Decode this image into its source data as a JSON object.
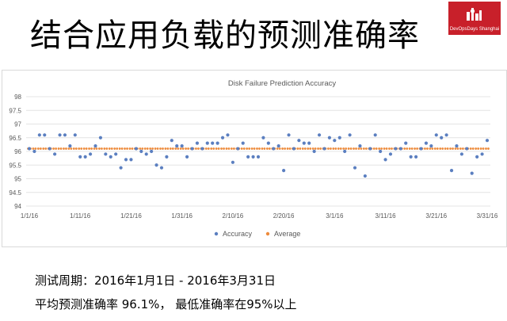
{
  "slide": {
    "title": "结合应用负载的预测准确率",
    "logo_text": "DevOpsDays Shanghai",
    "caption_line1": "测试周期：2016年1月1日 - 2016年3月31日",
    "caption_line2": "平均预测准确率 96.1%， 最低准确率在95%以上"
  },
  "chart_data": {
    "type": "scatter",
    "title": "Disk Failure Prediction Accuracy",
    "xlabel": "",
    "ylabel": "",
    "x_ticks": [
      "1/1/16",
      "1/11/16",
      "1/21/16",
      "1/31/16",
      "2/10/16",
      "2/20/16",
      "3/1/16",
      "3/11/16",
      "3/21/16",
      "3/31/16"
    ],
    "y_ticks": [
      94,
      94.5,
      95,
      95.5,
      96,
      96.5,
      97,
      97.5,
      98
    ],
    "ylim": [
      94,
      98
    ],
    "grid": true,
    "legend_position": "bottom",
    "series": [
      {
        "name": "Accuracy",
        "color": "#5b7fc0",
        "values": [
          96.1,
          96.0,
          96.6,
          96.6,
          96.1,
          95.9,
          96.6,
          96.6,
          96.2,
          96.6,
          95.8,
          95.8,
          95.9,
          96.2,
          96.5,
          95.9,
          95.8,
          95.9,
          95.4,
          95.7,
          95.7,
          96.1,
          96.0,
          95.9,
          96.0,
          95.5,
          95.4,
          95.8,
          96.4,
          96.2,
          96.2,
          95.8,
          96.1,
          96.3,
          96.1,
          96.3,
          96.3,
          96.3,
          96.5,
          96.6,
          95.6,
          96.1,
          96.3,
          95.8,
          95.8,
          95.8,
          96.5,
          96.3,
          96.1,
          96.2,
          95.3,
          96.6,
          96.1,
          96.4,
          96.3,
          96.3,
          96.0,
          96.6,
          96.1,
          96.5,
          96.4,
          96.5,
          96.0,
          96.6,
          95.4,
          96.2,
          95.1,
          96.1,
          96.6,
          96.0,
          95.7,
          95.9,
          96.1,
          96.1,
          96.3,
          95.8,
          95.8,
          96.1,
          96.3,
          96.2,
          96.6,
          96.5,
          96.6,
          95.3,
          96.2,
          95.9,
          96.1,
          95.2,
          95.8,
          95.9,
          96.4
        ]
      },
      {
        "name": "Average",
        "color": "#ed8b3c",
        "constant_value": 96.1
      }
    ]
  }
}
